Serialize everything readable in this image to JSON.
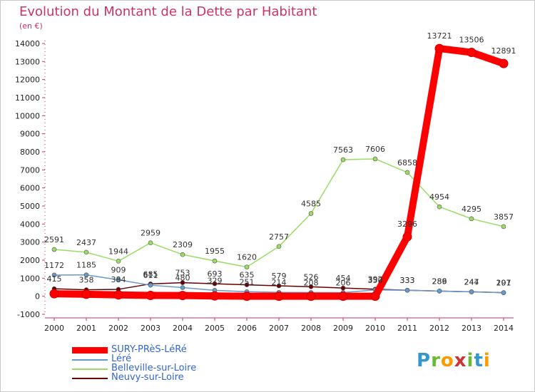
{
  "header": {
    "title": "Evolution du Montant de la Dette par Habitant",
    "unit": "(en €)"
  },
  "logo": {
    "text": "Proxiti"
  },
  "chart_data": {
    "type": "line",
    "title": "Evolution du Montant de la Dette par Habitant",
    "subtitle": "(en €)",
    "x": [
      "2000",
      "2001",
      "2002",
      "2003",
      "2004",
      "2005",
      "2006",
      "2007",
      "2008",
      "2009",
      "2010",
      "2011",
      "2012",
      "2013",
      "2014"
    ],
    "ylim": [
      -1000,
      14000
    ],
    "yticks": [
      -1000,
      0,
      1000,
      2000,
      3000,
      4000,
      5000,
      6000,
      7000,
      8000,
      9000,
      10000,
      11000,
      12000,
      13000,
      14000
    ],
    "grid": false,
    "legend_position": "bottom-left",
    "series": [
      {
        "name": "SURY-PRèS-LéRé",
        "color": "#ff0000",
        "values": [
          141,
          109,
          76,
          45,
          42,
          18,
          0,
          0,
          0,
          0,
          0,
          3296,
          13721,
          13506,
          12891
        ],
        "labels": [
          null,
          null,
          null,
          null,
          null,
          null,
          null,
          null,
          null,
          null,
          null,
          "3296",
          "13721",
          "13506",
          "12891"
        ]
      },
      {
        "name": "Léré",
        "color": "#6699cc",
        "values": [
          1172,
          1185,
          909,
          611,
          480,
          329,
          251,
          214,
          208,
          206,
          350,
          333,
          289,
          244,
          201
        ],
        "labels": [
          "1172",
          "1185",
          "909",
          "611",
          "480",
          "329",
          "251",
          "214",
          "208",
          "206",
          "350",
          "333",
          "289",
          "244",
          "201"
        ]
      },
      {
        "name": "Belleville-sur-Loire",
        "color": "#99dd66",
        "values": [
          2591,
          2437,
          1944,
          2959,
          2309,
          1955,
          1620,
          2757,
          4585,
          7563,
          7606,
          6858,
          4954,
          4295,
          3857
        ],
        "labels": [
          "2591",
          "2437",
          "1944",
          "2959",
          "2309",
          "1955",
          "1620",
          "2757",
          "4585",
          "7563",
          "7606",
          "6858",
          "4954",
          "4295",
          "3857"
        ]
      },
      {
        "name": "Neuvy-sur-Loire",
        "color": "#660000",
        "values": [
          415,
          358,
          384,
          685,
          753,
          693,
          635,
          579,
          526,
          454,
          392,
          333,
          286,
          247,
          197
        ],
        "labels": [
          "415",
          "358",
          "384",
          "685",
          "753",
          "693",
          "635",
          "579",
          "526",
          "454",
          "392",
          "333",
          "286",
          "247",
          "197"
        ]
      }
    ]
  }
}
